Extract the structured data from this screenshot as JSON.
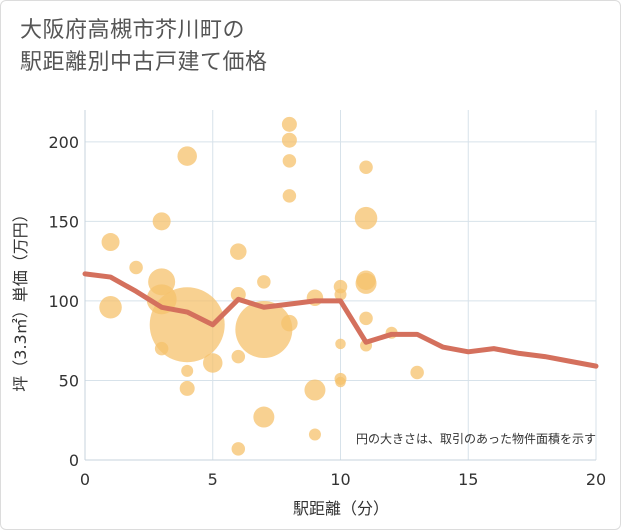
{
  "title": {
    "line1": "大阪府高槻市芥川町の",
    "line2": "駅距離別中古戸建て価格"
  },
  "chart_data": {
    "type": "scatter",
    "title": "大阪府高槻市芥川町の駅距離別中古戸建て価格",
    "xlabel": "駅距離（分）",
    "ylabel": "坪（3.3㎡）単価（万円）",
    "xlim": [
      0,
      20
    ],
    "ylim": [
      0,
      220
    ],
    "x_ticks": [
      0,
      5,
      10,
      15,
      20
    ],
    "y_ticks": [
      0,
      50,
      100,
      150,
      200
    ],
    "grid": true,
    "note": "円の大きさは、取引のあった物件面積を示す",
    "bubble_color": "#f5c16c",
    "line_color": "#d4705d",
    "points": [
      {
        "x": 1,
        "y": 137,
        "s": 1.2
      },
      {
        "x": 1,
        "y": 96,
        "s": 1.5
      },
      {
        "x": 2,
        "y": 121,
        "s": 0.9
      },
      {
        "x": 3,
        "y": 150,
        "s": 1.2
      },
      {
        "x": 3,
        "y": 112,
        "s": 1.8
      },
      {
        "x": 3,
        "y": 101,
        "s": 2.0
      },
      {
        "x": 3,
        "y": 70,
        "s": 0.9
      },
      {
        "x": 4,
        "y": 191,
        "s": 1.3
      },
      {
        "x": 4,
        "y": 85,
        "s": 5.0
      },
      {
        "x": 4,
        "y": 56,
        "s": 0.8
      },
      {
        "x": 4,
        "y": 45,
        "s": 1.0
      },
      {
        "x": 5,
        "y": 61,
        "s": 1.3
      },
      {
        "x": 6,
        "y": 131,
        "s": 1.1
      },
      {
        "x": 6,
        "y": 104,
        "s": 1.0
      },
      {
        "x": 6,
        "y": 65,
        "s": 0.9
      },
      {
        "x": 6,
        "y": 7,
        "s": 0.9
      },
      {
        "x": 7,
        "y": 112,
        "s": 0.9
      },
      {
        "x": 7,
        "y": 82,
        "s": 3.8
      },
      {
        "x": 7,
        "y": 27,
        "s": 1.4
      },
      {
        "x": 8,
        "y": 211,
        "s": 1.0
      },
      {
        "x": 8,
        "y": 201,
        "s": 1.0
      },
      {
        "x": 8,
        "y": 188,
        "s": 0.9
      },
      {
        "x": 8,
        "y": 166,
        "s": 0.9
      },
      {
        "x": 8,
        "y": 86,
        "s": 1.1
      },
      {
        "x": 9,
        "y": 102,
        "s": 1.1
      },
      {
        "x": 9,
        "y": 44,
        "s": 1.4
      },
      {
        "x": 9,
        "y": 16,
        "s": 0.8
      },
      {
        "x": 10,
        "y": 109,
        "s": 0.9
      },
      {
        "x": 10,
        "y": 104,
        "s": 0.8
      },
      {
        "x": 10,
        "y": 73,
        "s": 0.7
      },
      {
        "x": 10,
        "y": 51,
        "s": 0.8
      },
      {
        "x": 10,
        "y": 49,
        "s": 0.7
      },
      {
        "x": 11,
        "y": 184,
        "s": 0.9
      },
      {
        "x": 11,
        "y": 152,
        "s": 1.5
      },
      {
        "x": 11,
        "y": 113,
        "s": 1.3
      },
      {
        "x": 11,
        "y": 111,
        "s": 1.4
      },
      {
        "x": 11,
        "y": 89,
        "s": 0.9
      },
      {
        "x": 11,
        "y": 72,
        "s": 0.8
      },
      {
        "x": 12,
        "y": 80,
        "s": 0.8
      },
      {
        "x": 13,
        "y": 55,
        "s": 0.9
      }
    ],
    "line": {
      "x": [
        0,
        1,
        2,
        3,
        4,
        5,
        6,
        7,
        8,
        9,
        10,
        11,
        12,
        13,
        14,
        15,
        16,
        17,
        18,
        19,
        20
      ],
      "y": [
        117,
        115,
        106,
        96,
        93,
        85,
        101,
        96,
        98,
        100,
        100,
        74,
        79,
        79,
        71,
        68,
        70,
        67,
        65,
        62,
        59
      ]
    }
  }
}
